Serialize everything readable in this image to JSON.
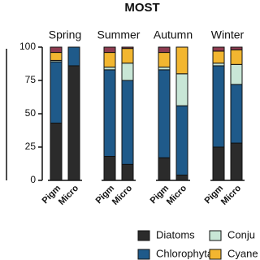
{
  "chart_data": {
    "type": "bar",
    "stacked": true,
    "title": "MOST",
    "groups": [
      "Spring",
      "Summer",
      "Autumn",
      "Winter"
    ],
    "categories": [
      "Pigm",
      "Micro",
      "Pigm",
      "Micro",
      "Pigm",
      "Micro",
      "Pigm",
      "Micro"
    ],
    "series": [
      {
        "name": "Diatoms",
        "color": "#2b2b2b",
        "values": [
          43,
          86,
          18,
          12,
          17,
          4,
          25,
          28
        ]
      },
      {
        "name": "Chlorophyta",
        "color": "#1f5a8a",
        "values": [
          46,
          14,
          65,
          63,
          66,
          52,
          61,
          44
        ]
      },
      {
        "name": "Conju",
        "color": "#c8e6d6",
        "values": [
          1,
          0,
          2,
          13,
          2,
          24,
          2,
          15
        ]
      },
      {
        "name": "Cyane",
        "color": "#f2b630",
        "values": [
          6,
          0,
          11,
          11,
          11,
          20,
          9,
          11
        ]
      },
      {
        "color": "#8e3b50",
        "values": [
          4,
          0,
          4,
          1,
          4,
          0,
          3,
          2
        ]
      }
    ],
    "ylim": [
      0,
      100
    ],
    "yticks": [
      0,
      25,
      50,
      75,
      100
    ]
  }
}
